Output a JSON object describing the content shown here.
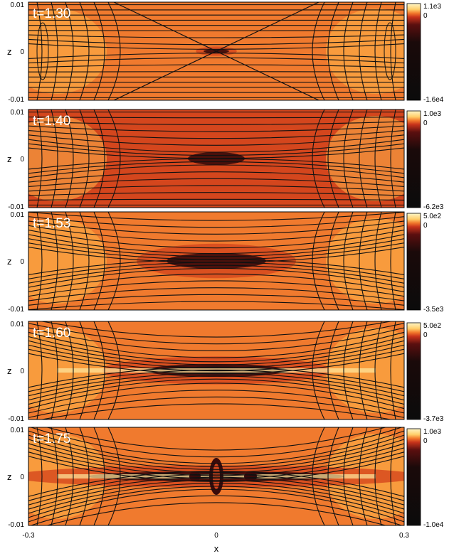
{
  "chart_data": [
    {
      "type": "heatmap",
      "time_label": "t=1.30",
      "colorbar": {
        "max_label": "1.1e3",
        "mid_label": "0",
        "min_label": "-1.6e4"
      },
      "y_ticks": [
        "0.01",
        "0",
        "-0.01"
      ],
      "ylabel": "z"
    },
    {
      "type": "heatmap",
      "time_label": "t=1.40",
      "colorbar": {
        "max_label": "1.0e3",
        "mid_label": "0",
        "min_label": "-6.2e3"
      },
      "y_ticks": [
        "0.01",
        "0",
        "-0.01"
      ],
      "ylabel": "z"
    },
    {
      "type": "heatmap",
      "time_label": "t=1.53",
      "colorbar": {
        "max_label": "5.0e2",
        "mid_label": "0",
        "min_label": "-3.5e3"
      },
      "y_ticks": [
        "0.01",
        "0",
        "-0.01"
      ],
      "ylabel": "z"
    },
    {
      "type": "heatmap",
      "time_label": "t=1.60",
      "colorbar": {
        "max_label": "5.0e2",
        "mid_label": "0",
        "min_label": "-3.7e3"
      },
      "y_ticks": [
        "0.01",
        "0",
        "-0.01"
      ],
      "ylabel": "z"
    },
    {
      "type": "heatmap",
      "time_label": "t=1.75",
      "colorbar": {
        "max_label": "1.0e3",
        "mid_label": "0",
        "min_label": "-1.0e4"
      },
      "y_ticks": [
        "0.01",
        "0",
        "-0.01"
      ],
      "ylabel": "z"
    }
  ],
  "x_axis": {
    "ticks": [
      "-0.3",
      "0",
      "0.3"
    ],
    "xlabel": "x",
    "range": [
      -0.3,
      0.3
    ]
  },
  "colormap": {
    "light": "#ffe9a0",
    "bright": "#ffb74a",
    "orange": "#f07a2e",
    "red": "#d4461d",
    "dark": "#3a0a0a",
    "black": "#0b0b0b"
  }
}
